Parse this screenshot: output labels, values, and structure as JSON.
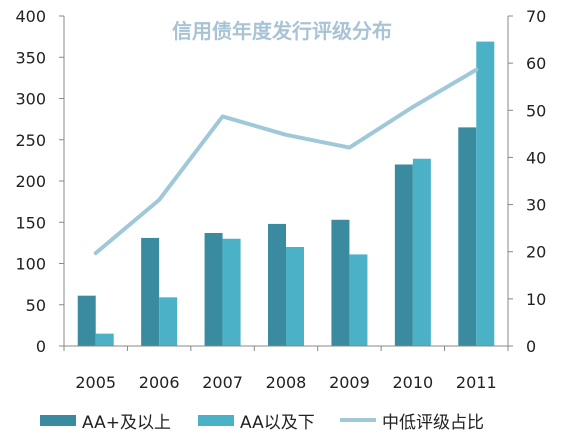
{
  "chart_data": {
    "type": "bar",
    "title": "信用债年度发行评级分布",
    "categories": [
      "2005",
      "2006",
      "2007",
      "2008",
      "2009",
      "2010",
      "2011"
    ],
    "series": [
      {
        "name": "AA+及以上",
        "kind": "bar",
        "axis": "left",
        "color": "#3a8aa0",
        "values": [
          61,
          131,
          137,
          148,
          153,
          220,
          265
        ]
      },
      {
        "name": "AA以及下",
        "kind": "bar",
        "axis": "left",
        "color": "#4bb1c7",
        "values": [
          15,
          59,
          130,
          120,
          111,
          227,
          369
        ]
      },
      {
        "name": "中低评级占比",
        "kind": "line",
        "axis": "right",
        "color": "#9fc8d8",
        "values": [
          19.7,
          31,
          48.7,
          44.8,
          42.1,
          50.7,
          58.6
        ]
      }
    ],
    "y_left": {
      "lim": [
        0,
        400
      ],
      "ticks": [
        "0",
        "50",
        "100",
        "150",
        "200",
        "250",
        "300",
        "350",
        "400"
      ]
    },
    "y_right": {
      "lim": [
        0,
        70
      ],
      "ticks": [
        "0",
        "10",
        "20",
        "30",
        "40",
        "50",
        "60",
        "70"
      ]
    },
    "grid": false,
    "legend_position": "bottom"
  }
}
